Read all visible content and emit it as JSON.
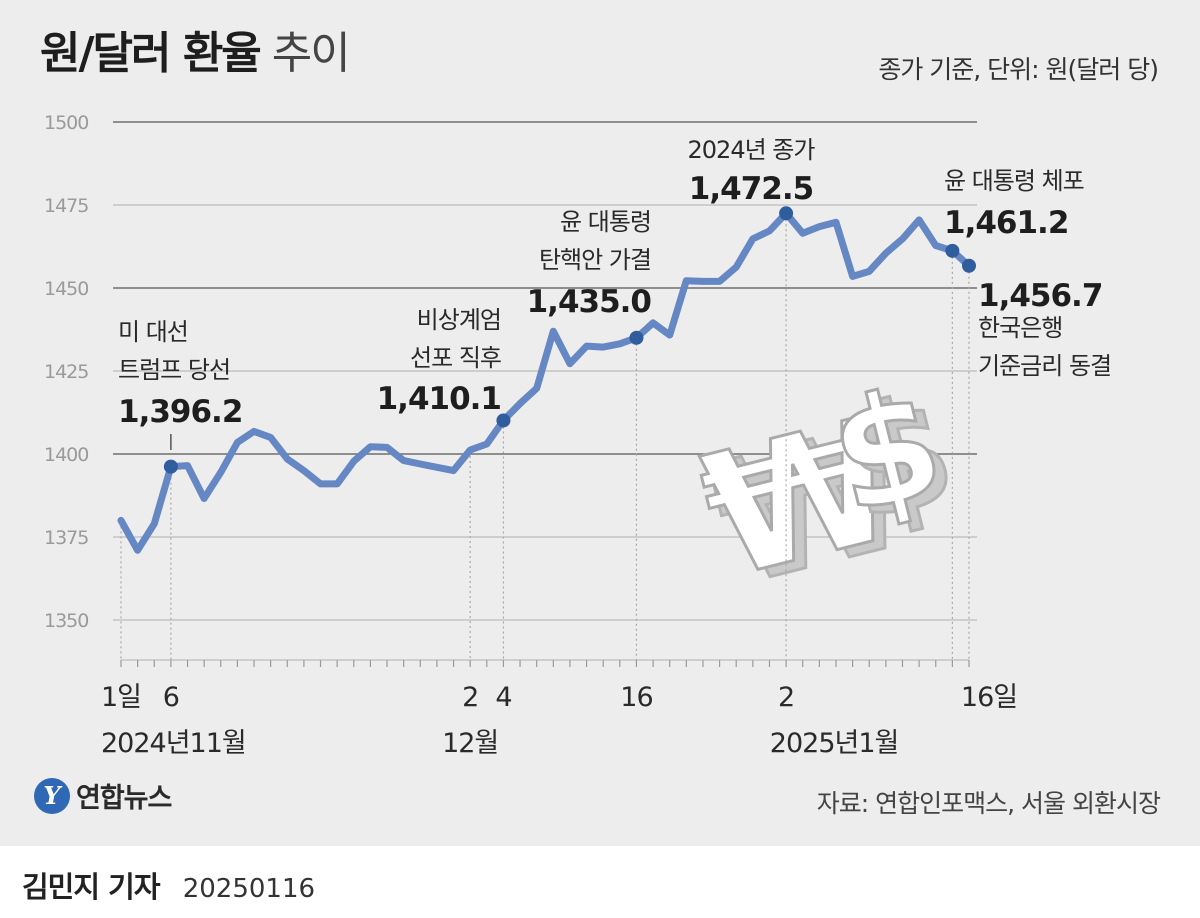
{
  "title": {
    "main": "원/달러 환율",
    "light": "추이"
  },
  "unit_note": "종가 기준, 단위: 원(달러 당)",
  "source": "자료: 연합인포맥스, 서울 외환시장",
  "logo": {
    "mark": "Y",
    "text": "연합뉴스"
  },
  "byline": {
    "author": "김민지 기자",
    "date": "20250116"
  },
  "colors": {
    "line": "#6587c4",
    "marker": "#2f5d9e",
    "grid_light": "#bdbdbd",
    "grid_dark": "#6e6e6e",
    "background": "#ededed"
  },
  "chart_data": {
    "type": "line",
    "ylim": [
      1350,
      1500
    ],
    "y_ticks": [
      1500,
      1475,
      1450,
      1425,
      1400,
      1375,
      1350
    ],
    "dark_gridlines": [
      1500,
      1450,
      1400
    ],
    "grid": true,
    "series": [
      {
        "values": [
          1380.0,
          1371.0,
          1379.0,
          1396.2,
          1396.5,
          1386.6,
          1394.5,
          1403.5,
          1406.8,
          1405.0,
          1398.5,
          1395.0,
          1391.0,
          1391.0,
          1397.8,
          1402.2,
          1402.0,
          1398.0,
          1397.0,
          1396.0,
          1395.0,
          1401.2,
          1403.0,
          1410.1,
          1415.2,
          1419.8,
          1437.0,
          1427.2,
          1432.5,
          1432.2,
          1433.2,
          1435.0,
          1439.5,
          1435.8,
          1452.2,
          1452.0,
          1452.0,
          1456.3,
          1464.8,
          1467.2,
          1472.5,
          1466.5,
          1468.5,
          1469.8,
          1453.5,
          1455.0,
          1460.5,
          1464.8,
          1470.5,
          1462.8,
          1461.2,
          1456.7
        ]
      }
    ],
    "annotations": [
      {
        "index": 3,
        "lines": [
          "미 대선",
          "트럼프 당선"
        ],
        "value": "1,396.2"
      },
      {
        "index": 23,
        "lines": [
          "비상계엄",
          "선포 직후"
        ],
        "value": "1,410.1"
      },
      {
        "index": 31,
        "lines": [
          "윤 대통령",
          "탄핵안 가결"
        ],
        "value": "1,435.0"
      },
      {
        "index": 40,
        "lines": [
          "2024년 종가"
        ],
        "value": "1,472.5"
      },
      {
        "index": 50,
        "lines": [
          "윤 대통령 체포"
        ],
        "value": "1,461.2"
      },
      {
        "index": 51,
        "lines": [
          "한국은행",
          "기준금리 동결"
        ],
        "value": "1,456.7"
      }
    ],
    "x_labels": [
      {
        "index": 0,
        "text": "1일"
      },
      {
        "index": 3,
        "text": "6"
      },
      {
        "index": 21,
        "text": "2"
      },
      {
        "index": 23,
        "text": "4"
      },
      {
        "index": 31,
        "text": "16"
      },
      {
        "index": 40,
        "text": "2"
      },
      {
        "index": 51,
        "text": "16일"
      }
    ],
    "month_labels": [
      {
        "index": 0,
        "text": "2024년11월"
      },
      {
        "index": 21,
        "text": "12월"
      },
      {
        "index": 40,
        "text": "2025년1월"
      }
    ],
    "decoration_text": {
      "won": "₩",
      "dollar": "$"
    }
  }
}
